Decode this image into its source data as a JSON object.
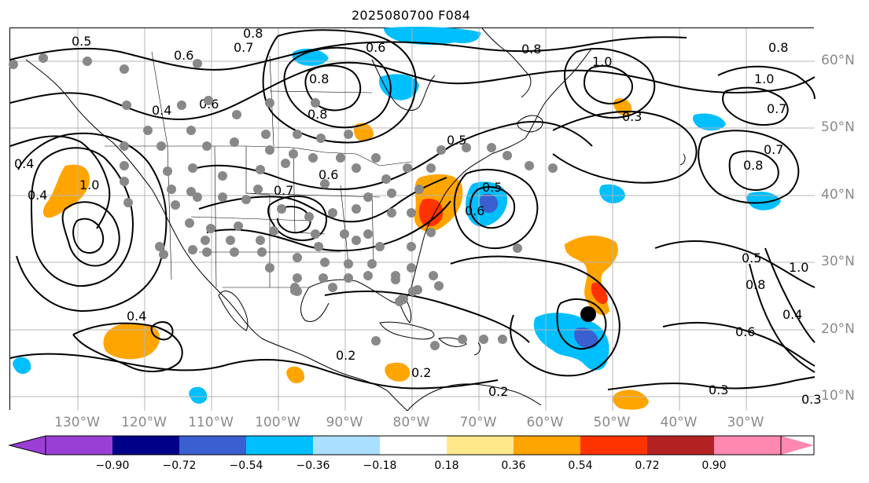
{
  "title": "2025080700 F084",
  "lat_labels": [
    "60°N",
    "50°N",
    "40°N",
    "30°N",
    "20°N",
    "10°N"
  ],
  "lon_labels": [
    "130°W",
    "120°W",
    "110°W",
    "100°W",
    "90°W",
    "80°W",
    "70°W",
    "60°W",
    "50°W",
    "40°W",
    "30°W"
  ],
  "colorbar": {
    "ticks": [
      "−0.90",
      "−0.72",
      "−0.54",
      "−0.36",
      "−0.18",
      "0.18",
      "0.36",
      "0.54",
      "0.72",
      "0.90"
    ],
    "colors": [
      "#9a3fd6",
      "#000088",
      "#3a5fd0",
      "#00bfff",
      "#aadfff",
      "#ffffff",
      "#ffe88a",
      "#ffa500",
      "#ff3300",
      "#b22222",
      "#ff88b0"
    ]
  },
  "contour_labels": [
    "0.5",
    "0.6",
    "0.7",
    "0.8",
    "0.8",
    "0.6",
    "0.8",
    "1.0",
    "0.8",
    "1.0",
    "0.3",
    "0.7",
    "0.4",
    "0.6",
    "0.8",
    "0.5",
    "0.5",
    "0.7",
    "0.6",
    "0.4",
    "1.0",
    "0.4",
    "0.8",
    "0.4",
    "0.6",
    "0.3",
    "0.2",
    "0.2",
    "0.6",
    "0.5",
    "0.8",
    "1.0",
    "0.4",
    "0.7",
    "0.2",
    "0.3"
  ],
  "marker": {
    "label": "storm-center",
    "color": "#000000"
  },
  "observation_color": "#888888"
}
